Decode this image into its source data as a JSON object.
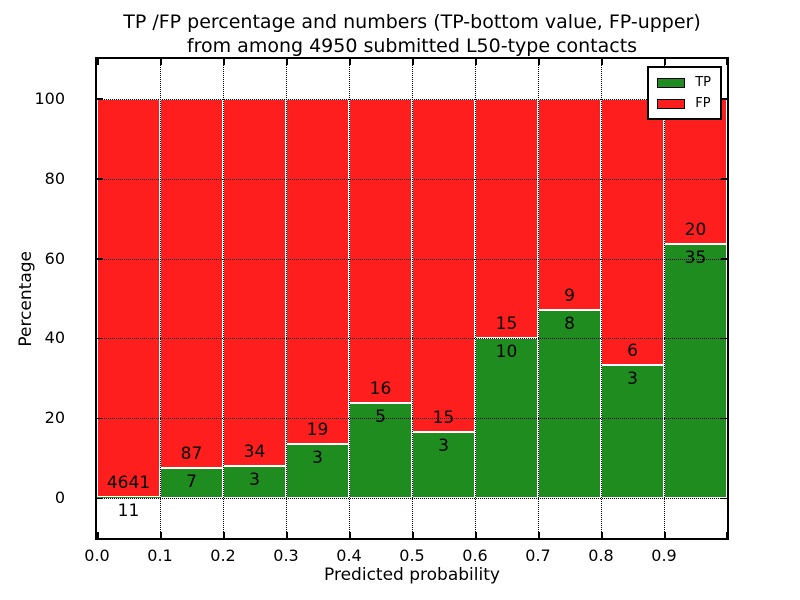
{
  "title": {
    "line1": "TP /FP percentage and numbers (TP-bottom value, FP-upper)",
    "line2": "from among 4950 submitted L50-type contacts"
  },
  "axes": {
    "xlabel": "Predicted probability",
    "ylabel": "Percentage",
    "x_tick_labels": [
      "0.0",
      "0.1",
      "0.2",
      "0.3",
      "0.4",
      "0.5",
      "0.6",
      "0.7",
      "0.8",
      "0.9"
    ],
    "y_tick_labels": [
      "0",
      "20",
      "40",
      "60",
      "80",
      "100"
    ],
    "y_tick_values": [
      0,
      20,
      40,
      60,
      80,
      100
    ]
  },
  "legend": {
    "items": [
      {
        "label": "TP",
        "color": "#1f8c1f"
      },
      {
        "label": "FP",
        "color": "#ff1e1e"
      }
    ]
  },
  "colors": {
    "tp_green": "#1f8c1f",
    "fp_red": "#ff1e1e",
    "bar_edge": "#ffffff",
    "grid": "#000000",
    "text": "#000000"
  },
  "chart_data": {
    "type": "bar",
    "stacked": true,
    "normalized": "percent",
    "title": "TP /FP percentage and numbers (TP-bottom value, FP-upper) from among 4950 submitted L50-type contacts",
    "xlabel": "Predicted probability",
    "ylabel": "Percentage",
    "total_contacts": 4950,
    "bin_edges": [
      0.0,
      0.1,
      0.2,
      0.3,
      0.4,
      0.5,
      0.6,
      0.7,
      0.8,
      0.9,
      1.0
    ],
    "categories": [
      "0.0-0.1",
      "0.1-0.2",
      "0.2-0.3",
      "0.3-0.4",
      "0.4-0.5",
      "0.5-0.6",
      "0.6-0.7",
      "0.7-0.8",
      "0.8-0.9",
      "0.9-1.0"
    ],
    "series": [
      {
        "name": "TP",
        "color": "#1f8c1f",
        "counts": [
          11,
          7,
          3,
          3,
          5,
          3,
          10,
          8,
          3,
          35
        ],
        "percent": [
          0.24,
          7.45,
          8.11,
          13.64,
          23.81,
          16.67,
          40.0,
          47.06,
          33.33,
          63.64
        ]
      },
      {
        "name": "FP",
        "color": "#ff1e1e",
        "counts": [
          4641,
          87,
          34,
          19,
          16,
          15,
          15,
          9,
          6,
          20
        ],
        "percent": [
          99.76,
          92.55,
          91.89,
          86.36,
          76.19,
          83.33,
          60.0,
          52.94,
          66.67,
          36.36
        ]
      }
    ],
    "xlim": [
      0.0,
      1.0
    ],
    "ylim": [
      -10,
      110
    ],
    "grid": true,
    "grid_style": "dotted",
    "legend_position": "upper right"
  }
}
